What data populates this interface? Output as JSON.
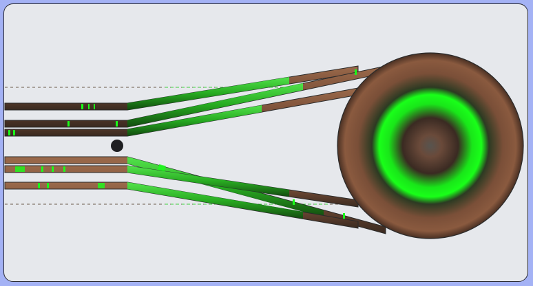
{
  "scene": {
    "background_color": "#a4b2f5",
    "panel_color": "#e6e8ec",
    "panel_border_color": "#2b2b33",
    "hole_color": "#1f1f22",
    "rail_colors": {
      "copper": "#8a5a3c",
      "green": "#1fb51f",
      "bright_green": "#19ff19",
      "dark": "#2b2b2b"
    },
    "wheel_colors": {
      "rim": "#3a2a20",
      "copper": "#8a5a3c",
      "ring_green": "#19ff19",
      "center": "#4d4d49"
    },
    "icons": [
      "spool-wheel-icon",
      "pivot-hole-icon",
      "guide-line-icon"
    ]
  }
}
